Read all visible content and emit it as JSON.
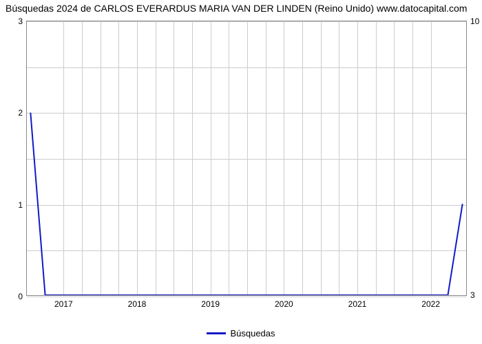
{
  "title": "Búsquedas 2024 de CARLOS EVERARDUS MARIA VAN DER LINDEN (Reino Unido) www.datocapital.com",
  "chart": {
    "type": "line",
    "title_fontsize": 14,
    "background_color": "#ffffff",
    "border_color": "#888888",
    "grid_color": "#cccccc",
    "x": {
      "min": 2016.5,
      "max": 2022.5,
      "ticks": [
        2017,
        2018,
        2019,
        2020,
        2021,
        2022
      ],
      "minor_grid_per_interval": 4,
      "tick_fontsize": 12
    },
    "y_left": {
      "min": 0,
      "max": 3,
      "ticks": [
        0,
        1,
        2,
        3
      ],
      "minor_grid_per_interval": 2,
      "tick_fontsize": 12
    },
    "y_right": {
      "bottom_label": "3",
      "top_label": "10"
    },
    "series": [
      {
        "name": "Búsquedas",
        "color": "#1019c6",
        "line_width": 2,
        "points": [
          {
            "x": 2016.55,
            "y": 2.0
          },
          {
            "x": 2016.75,
            "y": 0.0
          },
          {
            "x": 2022.25,
            "y": 0.0
          },
          {
            "x": 2022.45,
            "y": 1.0
          }
        ]
      }
    ],
    "legend": {
      "label": "Búsquedas",
      "swatch_color": "#1019c6",
      "fontsize": 13
    }
  }
}
